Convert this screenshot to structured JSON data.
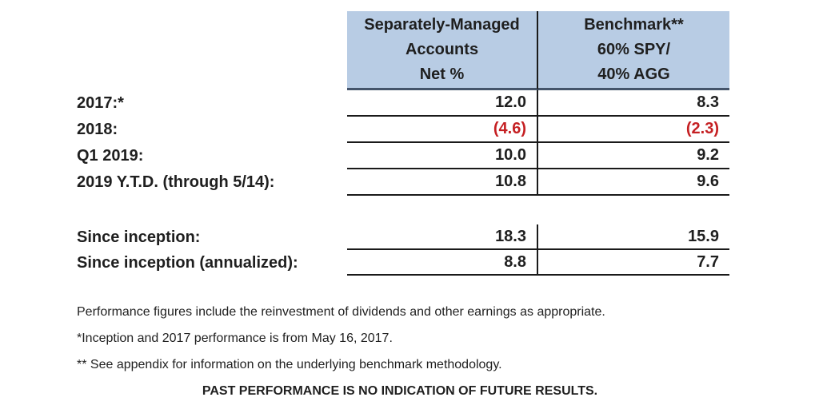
{
  "colors": {
    "header_bg": "#b8cce4",
    "header_border": "#44546a",
    "line": "#1a1a1a",
    "text": "#1f1f1f",
    "negative": "#c52023"
  },
  "table": {
    "headers": [
      {
        "lines": [
          "Separately-Managed",
          "Accounts",
          "Net %"
        ]
      },
      {
        "lines": [
          "Benchmark**",
          "60% SPY/",
          "40% AGG"
        ]
      }
    ],
    "rows": [
      {
        "label": "2017:*",
        "sma": "12.0",
        "benchmark": "8.3"
      },
      {
        "label": "2018:",
        "sma": "(4.6)",
        "benchmark": "(2.3)"
      },
      {
        "label": "Q1 2019:",
        "sma": "10.0",
        "benchmark": "9.2"
      },
      {
        "label": "2019 Y.T.D. (through 5/14):",
        "sma": "10.8",
        "benchmark": "9.6"
      }
    ],
    "summary_rows": [
      {
        "label": "Since inception:",
        "sma": "18.3",
        "benchmark": "15.9"
      },
      {
        "label": "Since inception (annualized):",
        "sma": "8.8",
        "benchmark": "7.7"
      }
    ]
  },
  "footnotes": [
    "Performance figures include the reinvestment of dividends and other earnings as appropriate.",
    "*Inception and 2017 performance is from May 16, 2017.",
    "** See appendix for information on the underlying benchmark methodology."
  ],
  "disclaimer": "PAST PERFORMANCE IS NO INDICATION OF FUTURE RESULTS."
}
